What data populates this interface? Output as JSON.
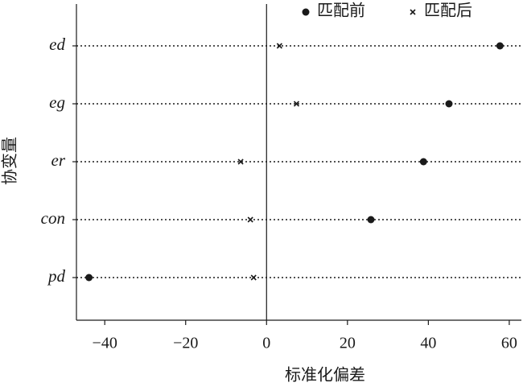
{
  "chart_data": {
    "type": "dot",
    "categories": [
      "ed",
      "eg",
      "er",
      "con",
      "pd"
    ],
    "series": [
      {
        "name": "匹配前",
        "color": "#1a1a1a",
        "marker": "circle",
        "values": [
          57.7,
          45.1,
          38.8,
          25.8,
          -43.9
        ]
      },
      {
        "name": "匹配后",
        "color": "#1a1a1a",
        "marker": "cross",
        "values": [
          3.2,
          7.4,
          -6.4,
          -4.0,
          -3.2
        ]
      }
    ],
    "xlabel": "标准化偏差",
    "ylabel": "协变量",
    "xlim": [
      -47,
      63
    ],
    "xticks": [
      {
        "value": -40,
        "label": "−40"
      },
      {
        "value": -20,
        "label": "−20"
      },
      0,
      20,
      40,
      60
    ],
    "guide_lines": "dotted",
    "legend": "top-right"
  }
}
